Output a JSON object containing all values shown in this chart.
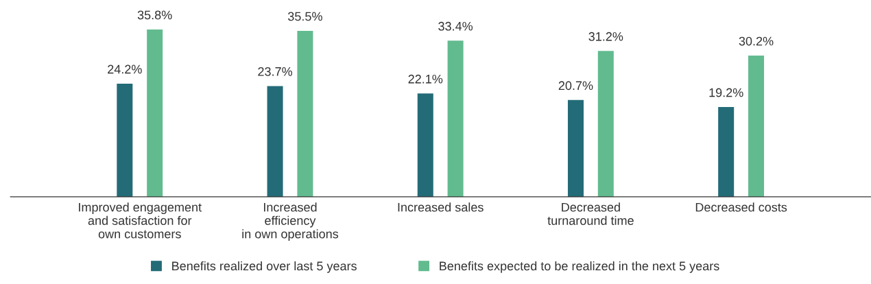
{
  "chart_data": {
    "type": "bar",
    "categories": [
      "Improved engagement\nand satisfaction for\nown customers",
      "Increased\nefficiency\nin own operations",
      "Increased sales",
      "Decreased\nturnaround time",
      "Decreased costs"
    ],
    "series": [
      {
        "name": "Benefits realized over last 5 years",
        "color": "#236b77",
        "values": [
          24.2,
          23.7,
          22.1,
          20.7,
          19.2
        ],
        "value_labels": [
          "24.2%",
          "23.7%",
          "22.1%",
          "20.7%",
          "19.2%"
        ]
      },
      {
        "name": "Benefits expected to be realized in the next 5 years",
        "color": "#62bb8f",
        "values": [
          35.8,
          35.5,
          33.4,
          31.2,
          30.2
        ],
        "value_labels": [
          "35.8%",
          "35.5%",
          "33.4%",
          "31.2%",
          "30.2%"
        ]
      }
    ],
    "legend": "bottom",
    "grid": false
  }
}
